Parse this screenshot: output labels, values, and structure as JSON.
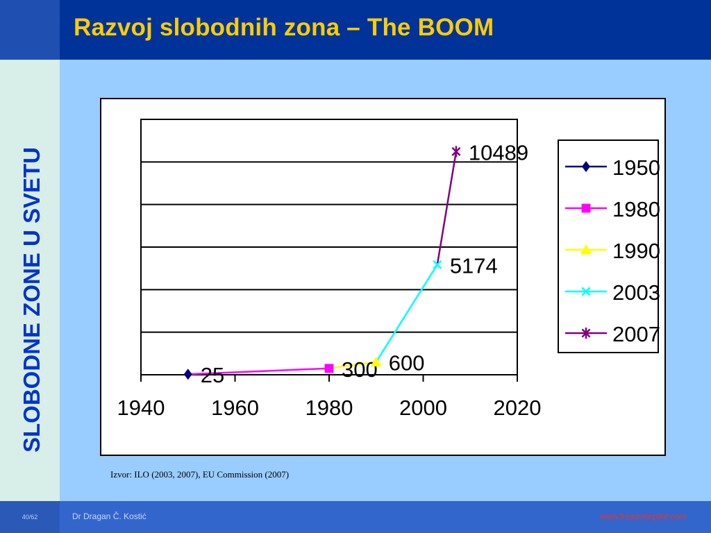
{
  "slide": {
    "title": "Razvoj slobodnih zona – The BOOM",
    "side_title": "SLOBODNE ZONE U SVETU",
    "source": "Izvor: ILO (2003, 2007), EU Commission (2007)",
    "footer": {
      "page": "40/62",
      "author": "Dr Dragan Č. Kostić",
      "website": "www.freezonepilot.com"
    }
  },
  "colors": {
    "header": "#003399",
    "title": "#FFCC00",
    "side_title": "#0033CC",
    "background": "#99CCFF"
  },
  "chart_data": {
    "type": "line",
    "xlim": [
      1940,
      2020
    ],
    "x_ticks": [
      1940,
      1960,
      1980,
      2000,
      2020
    ],
    "ylim": [
      0,
      12000
    ],
    "grid": true,
    "legend": "right",
    "connecting_line": [
      {
        "from": 1950,
        "to": 1980,
        "color": "#FF00FF"
      },
      {
        "from": 1980,
        "to": 1990,
        "color": "#FFFF00"
      },
      {
        "from": 1990,
        "to": 2003,
        "color": "#00FFFF"
      },
      {
        "from": 2003,
        "to": 2007,
        "color": "#800080"
      }
    ],
    "series": [
      {
        "name": "1950",
        "x": 1950,
        "y": 25,
        "label": "25",
        "color": "#000080",
        "marker": "diamond"
      },
      {
        "name": "1980",
        "x": 1980,
        "y": 300,
        "label": "300",
        "color": "#FF00FF",
        "marker": "square"
      },
      {
        "name": "1990",
        "x": 1990,
        "y": 600,
        "label": "600",
        "color": "#FFFF00",
        "marker": "triangle"
      },
      {
        "name": "2003",
        "x": 2003,
        "y": 5174,
        "label": "5174",
        "color": "#00FFFF",
        "marker": "x"
      },
      {
        "name": "2007",
        "x": 2007,
        "y": 10489,
        "label": "10489",
        "color": "#800080",
        "marker": "star"
      }
    ]
  }
}
